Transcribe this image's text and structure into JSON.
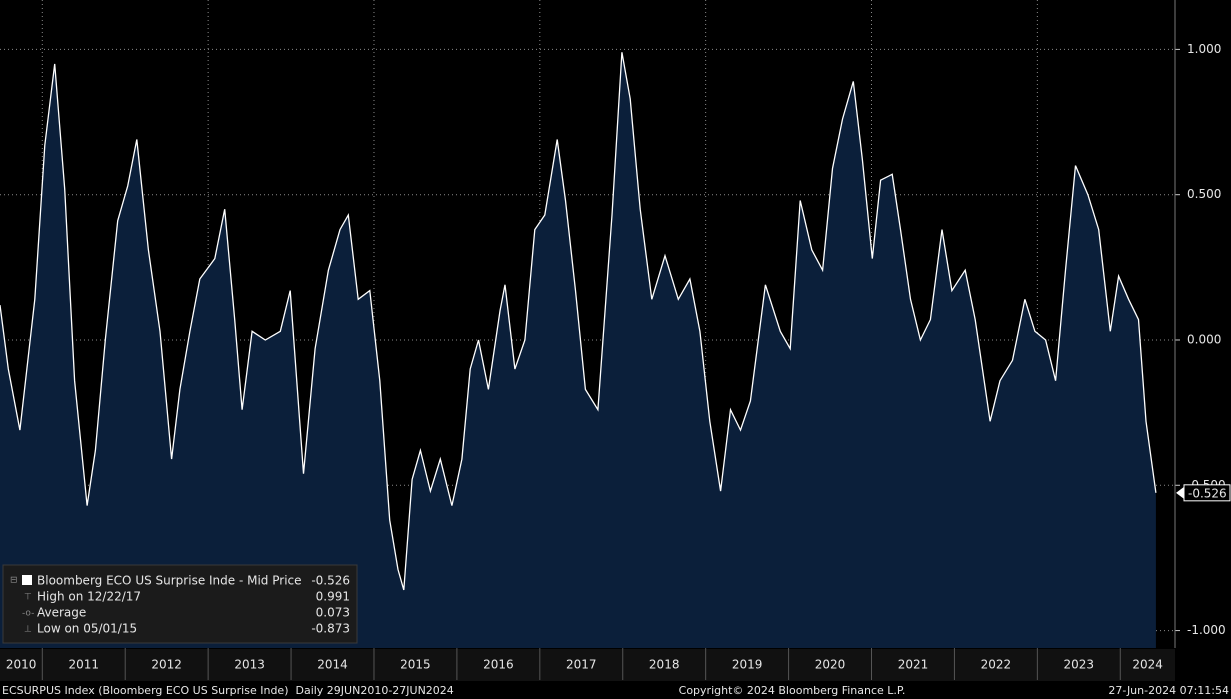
{
  "chart_data": {
    "type": "area",
    "x": [
      2010.49,
      2010.59,
      2010.73,
      2010.91,
      2011.03,
      2011.15,
      2011.27,
      2011.39,
      2011.54,
      2011.64,
      2011.76,
      2011.91,
      2012.03,
      2012.14,
      2012.28,
      2012.42,
      2012.56,
      2012.66,
      2012.78,
      2012.9,
      2013.08,
      2013.2,
      2013.32,
      2013.41,
      2013.53,
      2013.69,
      2013.87,
      2013.99,
      2014.15,
      2014.29,
      2014.45,
      2014.59,
      2014.69,
      2014.81,
      2014.95,
      2015.07,
      2015.19,
      2015.29,
      2015.36,
      2015.46,
      2015.56,
      2015.68,
      2015.8,
      2015.94,
      2016.06,
      2016.16,
      2016.26,
      2016.38,
      2016.52,
      2016.58,
      2016.7,
      2016.82,
      2016.94,
      2017.06,
      2017.21,
      2017.31,
      2017.43,
      2017.55,
      2017.7,
      2017.87,
      2017.99,
      2018.09,
      2018.21,
      2018.35,
      2018.51,
      2018.67,
      2018.81,
      2018.93,
      2019.05,
      2019.18,
      2019.3,
      2019.42,
      2019.54,
      2019.72,
      2019.9,
      2020.02,
      2020.14,
      2020.28,
      2020.41,
      2020.53,
      2020.65,
      2020.78,
      2020.89,
      2021.01,
      2021.11,
      2021.25,
      2021.35,
      2021.47,
      2021.59,
      2021.71,
      2021.85,
      2021.97,
      2022.13,
      2022.25,
      2022.43,
      2022.55,
      2022.7,
      2022.85,
      2022.97,
      2023.1,
      2023.22,
      2023.34,
      2023.46,
      2023.61,
      2023.74,
      2023.88,
      2023.98,
      2024.1,
      2024.22,
      2024.31,
      2024.43
    ],
    "series": [
      {
        "name": "Bloomberg ECO US Surprise Inde - Mid Price",
        "color": "#ffffff",
        "fill": "#0b1f3a",
        "values": [
          0.12,
          -0.1,
          -0.31,
          0.14,
          0.67,
          0.95,
          0.52,
          -0.14,
          -0.57,
          -0.38,
          0.0,
          0.41,
          0.53,
          0.69,
          0.31,
          0.03,
          -0.41,
          -0.17,
          0.03,
          0.21,
          0.28,
          0.45,
          0.07,
          -0.24,
          0.03,
          0.0,
          0.03,
          0.17,
          -0.46,
          -0.03,
          0.24,
          0.38,
          0.43,
          0.14,
          0.17,
          -0.14,
          -0.62,
          -0.79,
          -0.86,
          -0.48,
          -0.38,
          -0.52,
          -0.41,
          -0.57,
          -0.41,
          -0.1,
          0.0,
          -0.17,
          0.1,
          0.19,
          -0.1,
          0.0,
          0.38,
          0.43,
          0.69,
          0.48,
          0.17,
          -0.17,
          -0.24,
          0.43,
          0.99,
          0.83,
          0.45,
          0.14,
          0.29,
          0.14,
          0.21,
          0.03,
          -0.28,
          -0.52,
          -0.24,
          -0.31,
          -0.21,
          0.19,
          0.03,
          -0.03,
          0.48,
          0.31,
          0.24,
          0.59,
          0.76,
          0.89,
          0.62,
          0.28,
          0.55,
          0.57,
          0.38,
          0.14,
          0.0,
          0.07,
          0.38,
          0.17,
          0.24,
          0.07,
          -0.28,
          -0.14,
          -0.07,
          0.14,
          0.03,
          0.0,
          -0.14,
          0.24,
          0.6,
          0.5,
          0.38,
          0.03,
          0.22,
          0.14,
          0.07,
          -0.28,
          -0.526
        ]
      }
    ],
    "xlim": [
      2010.49,
      2024.66
    ],
    "xticks": [
      2010,
      2011,
      2012,
      2013,
      2014,
      2015,
      2016,
      2017,
      2018,
      2019,
      2020,
      2021,
      2022,
      2023,
      2024
    ],
    "ylim": [
      -1.06,
      1.17
    ],
    "yticks": [
      {
        "value": 1,
        "label": "1.000"
      },
      {
        "value": 0.5,
        "label": "0.500"
      },
      {
        "value": 0,
        "label": "0.000"
      },
      {
        "value": -0.5,
        "label": "-0.500"
      },
      {
        "value": -1,
        "label": "-1.000"
      }
    ],
    "grid": true,
    "last_value": -0.526,
    "legend": {
      "current": -0.526,
      "high_label": "High on 12/22/17",
      "high": 0.991,
      "average_label": "Average",
      "average": 0.073,
      "low_label": "Low on 05/01/15",
      "low": -0.873
    },
    "footer": {
      "left": "ECSURPUS Index (Bloomberg ECO US Surprise Inde)  Daily 29JUN2010-27JUN2024",
      "center": "Copyright© 2024 Bloomberg Finance L.P.",
      "right": "27-Jun-2024 07:11:54"
    }
  }
}
